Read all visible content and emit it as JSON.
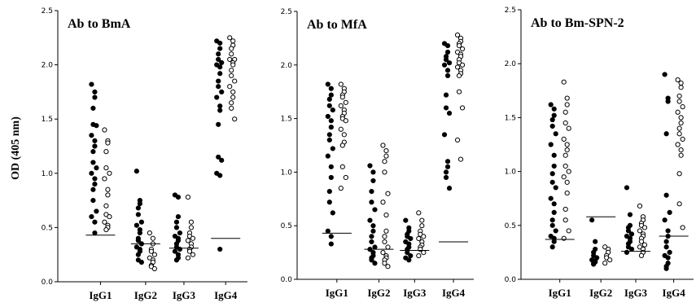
{
  "y_axis_label": "OD (405 nm)",
  "chart_data": [
    {
      "type": "scatter",
      "title": "Ab to BmA",
      "ylabel": "OD (405 nm)",
      "ylim": [
        0,
        2.5
      ],
      "yticks": [
        "0.0",
        "0.5",
        "1.0",
        "1.5",
        "2.0",
        "2.5"
      ],
      "categories": [
        "IgG1",
        "IgG2",
        "IgG3",
        "IgG4"
      ],
      "series": [
        {
          "values": [
            [
              1.82,
              1.75,
              1.7,
              1.6,
              1.45,
              1.44,
              1.35,
              1.3,
              1.25,
              1.2,
              1.1,
              1.05,
              1.0,
              0.95,
              0.9,
              0.85,
              0.75,
              0.65,
              0.6,
              0.55,
              0.45
            ],
            [
              1.02,
              0.75,
              0.72,
              0.68,
              0.62,
              0.55,
              0.52,
              0.48,
              0.45,
              0.4,
              0.38,
              0.35,
              0.32,
              0.3,
              0.28,
              0.25,
              0.2,
              0.18
            ],
            [
              0.8,
              0.78,
              0.6,
              0.55,
              0.5,
              0.45,
              0.42,
              0.4,
              0.38,
              0.35,
              0.32,
              0.3,
              0.28,
              0.25,
              0.22,
              0.2
            ],
            [
              2.22,
              2.2,
              2.15,
              2.1,
              2.05,
              2.02,
              2.0,
              1.98,
              1.92,
              1.85,
              1.8,
              1.75,
              1.7,
              1.62,
              1.58,
              1.45,
              1.15,
              1.12,
              1.0,
              0.98,
              0.3
            ]
          ]
        },
        {
          "values": [
            [
              1.4,
              1.3,
              1.28,
              1.2,
              1.05,
              1.0,
              0.95,
              0.85,
              0.8,
              0.7,
              0.62,
              0.6,
              0.55,
              0.52,
              0.5,
              0.48
            ],
            [
              0.45,
              0.4,
              0.35,
              0.3,
              0.28,
              0.25,
              0.22,
              0.2,
              0.18,
              0.15,
              0.14,
              0.12
            ],
            [
              0.78,
              0.55,
              0.5,
              0.45,
              0.42,
              0.4,
              0.38,
              0.35,
              0.32,
              0.3,
              0.28,
              0.25,
              0.22
            ],
            [
              2.25,
              2.22,
              2.18,
              2.15,
              2.1,
              2.05,
              2.05,
              2.02,
              2.0,
              1.95,
              1.9,
              1.85,
              1.8,
              1.75,
              1.7,
              1.65,
              1.6,
              1.5
            ]
          ]
        }
      ],
      "medians": [
        0.43,
        0.35,
        0.31,
        0.4
      ]
    },
    {
      "type": "scatter",
      "title": "Ab to MfA",
      "ylabel": "OD (405 nm)",
      "ylim": [
        0,
        2.5
      ],
      "yticks": [
        "0.0",
        "0.5",
        "1.0",
        "1.5",
        "2.0",
        "2.5"
      ],
      "categories": [
        "IgG1",
        "IgG2",
        "IgG3",
        "IgG4"
      ],
      "series": [
        {
          "values": [
            [
              1.82,
              1.78,
              1.72,
              1.68,
              1.62,
              1.58,
              1.52,
              1.48,
              1.42,
              1.35,
              1.3,
              1.22,
              1.15,
              1.05,
              0.95,
              0.82,
              0.72,
              0.62,
              0.45,
              0.4,
              0.33
            ],
            [
              1.06,
              1.0,
              0.92,
              0.82,
              0.72,
              0.65,
              0.55,
              0.5,
              0.45,
              0.4,
              0.35,
              0.3,
              0.28,
              0.25,
              0.22,
              0.2,
              0.18,
              0.15
            ],
            [
              0.55,
              0.48,
              0.45,
              0.42,
              0.4,
              0.38,
              0.35,
              0.33,
              0.3,
              0.28,
              0.25,
              0.22,
              0.2,
              0.18
            ],
            [
              2.2,
              2.18,
              2.12,
              2.08,
              2.05,
              2.02,
              2.0,
              1.95,
              1.9,
              1.72,
              1.6,
              1.55,
              1.35,
              1.1,
              1.05,
              1.0,
              0.95,
              0.85
            ]
          ]
        },
        {
          "values": [
            [
              1.82,
              1.78,
              1.75,
              1.72,
              1.7,
              1.65,
              1.62,
              1.58,
              1.55,
              1.52,
              1.5,
              1.48,
              1.4,
              1.35,
              1.28,
              1.25,
              1.05,
              0.95,
              0.85
            ],
            [
              1.25,
              1.2,
              1.15,
              1.1,
              1.0,
              0.8,
              0.72,
              0.6,
              0.45,
              0.4,
              0.35,
              0.3,
              0.25,
              0.22,
              0.2,
              0.18,
              0.15,
              0.12
            ],
            [
              0.62,
              0.55,
              0.5,
              0.45,
              0.42,
              0.4,
              0.38,
              0.35,
              0.32,
              0.3,
              0.28,
              0.25,
              0.22
            ],
            [
              2.28,
              2.25,
              2.22,
              2.2,
              2.18,
              2.15,
              2.12,
              2.1,
              2.08,
              2.05,
              2.02,
              2.0,
              1.98,
              1.95,
              1.92,
              1.9,
              1.75,
              1.6,
              1.3,
              1.12
            ]
          ]
        }
      ],
      "medians": [
        0.43,
        0.28,
        0.27,
        0.35
      ]
    },
    {
      "type": "scatter",
      "title": "Ab to Bm-SPN-2",
      "ylabel": "",
      "ylim": [
        0,
        2.5
      ],
      "yticks": [
        "0.0",
        "0.5",
        "1.0",
        "1.5",
        "2.0",
        "2.5"
      ],
      "categories": [
        "IgG1",
        "IgG2",
        "IgG3",
        "IgG4"
      ],
      "series": [
        {
          "values": [
            [
              1.62,
              1.58,
              1.52,
              1.48,
              1.42,
              1.35,
              1.25,
              1.15,
              1.05,
              0.98,
              0.9,
              0.85,
              0.75,
              0.7,
              0.62,
              0.55,
              0.5,
              0.45,
              0.4,
              0.38,
              0.35,
              0.3
            ],
            [
              0.55,
              0.35,
              0.28,
              0.25,
              0.22,
              0.2,
              0.18,
              0.17,
              0.16,
              0.15,
              0.14
            ],
            [
              0.85,
              0.6,
              0.5,
              0.48,
              0.45,
              0.42,
              0.4,
              0.38,
              0.35,
              0.33,
              0.3,
              0.28,
              0.25
            ],
            [
              1.9,
              1.68,
              1.65,
              1.35,
              0.78,
              0.62,
              0.55,
              0.45,
              0.4,
              0.35,
              0.3,
              0.25,
              0.22,
              0.2,
              0.15,
              0.12,
              0.1
            ]
          ]
        },
        {
          "values": [
            [
              1.83,
              1.68,
              1.62,
              1.55,
              1.45,
              1.4,
              1.3,
              1.25,
              1.2,
              1.15,
              1.05,
              1.0,
              0.95,
              0.9,
              0.8,
              0.65,
              0.55,
              0.45,
              0.38
            ],
            [
              0.3,
              0.28,
              0.25,
              0.22,
              0.2,
              0.18,
              0.15
            ],
            [
              0.68,
              0.58,
              0.55,
              0.52,
              0.5,
              0.48,
              0.45,
              0.42,
              0.4,
              0.38,
              0.35,
              0.32,
              0.3,
              0.28,
              0.25,
              0.22
            ],
            [
              1.85,
              1.82,
              1.78,
              1.7,
              1.65,
              1.6,
              1.55,
              1.5,
              1.45,
              1.4,
              1.35,
              1.3,
              1.25,
              1.2,
              1.15,
              0.98,
              0.7,
              0.48
            ]
          ]
        }
      ],
      "medians": [
        0.37,
        0.58,
        0.26,
        0.4
      ]
    }
  ]
}
